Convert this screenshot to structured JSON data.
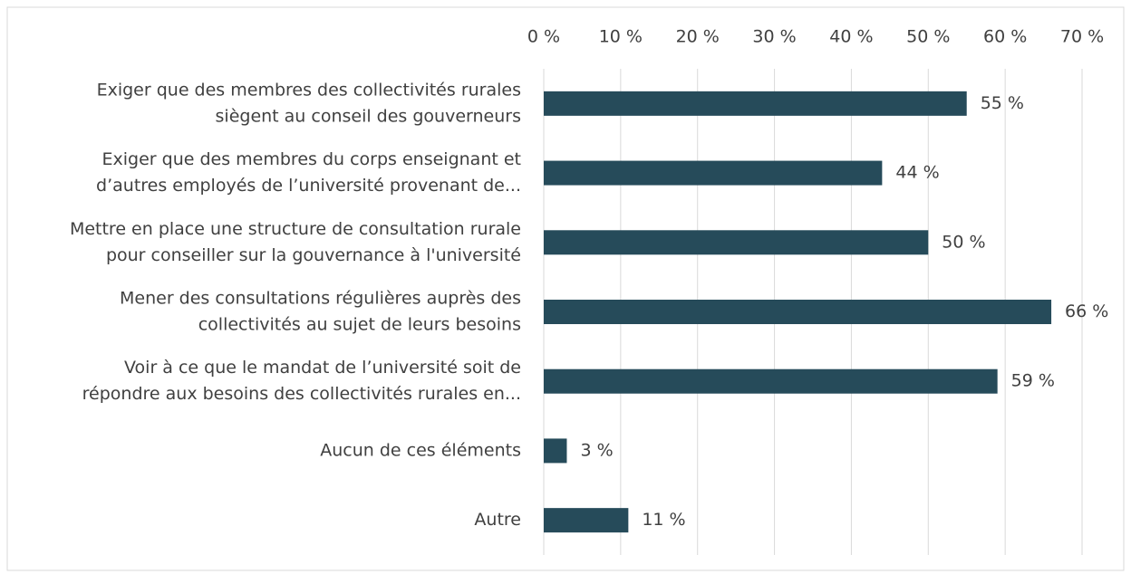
{
  "chart_data": {
    "type": "bar",
    "orientation": "horizontal",
    "categories": [
      [
        "Exiger que des membres des collectivités rurales",
        "siègent au conseil des gouverneurs"
      ],
      [
        "Exiger que des membres du corps enseignant et",
        "d’autres employés de l’université provenant de..."
      ],
      [
        "Mettre en place une structure de consultation rurale",
        "pour conseiller sur la gouvernance à l'université"
      ],
      [
        "Mener des consultations régulières auprès des",
        "collectivités au sujet de leurs besoins"
      ],
      [
        "Voir à ce que le mandat de l’université soit de",
        "répondre aux besoins des collectivités rurales en..."
      ],
      [
        "Aucun de ces éléments"
      ],
      [
        "Autre"
      ]
    ],
    "values": [
      55,
      44,
      50,
      66,
      59,
      3,
      11
    ],
    "value_labels": [
      "55 %",
      "44 %",
      "50 %",
      "66 %",
      "59 %",
      "3 %",
      "11 %"
    ],
    "color": "#264b5a",
    "xlim": [
      0,
      70
    ],
    "xticks": [
      {
        "value": 0,
        "label": "0 %"
      },
      {
        "value": 10,
        "label": "10 %"
      },
      {
        "value": 20,
        "label": "20 %"
      },
      {
        "value": 30,
        "label": "30 %"
      },
      {
        "value": 40,
        "label": "40 %"
      },
      {
        "value": 50,
        "label": "50 %"
      },
      {
        "value": 60,
        "label": "60 %"
      },
      {
        "value": 70,
        "label": "70 %"
      }
    ],
    "grid": true
  }
}
